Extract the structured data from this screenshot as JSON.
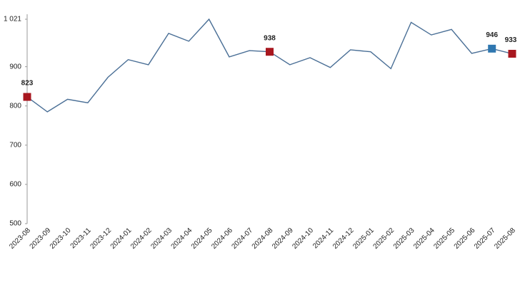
{
  "chart_data": {
    "type": "line",
    "categories": [
      "2023-08",
      "2023-09",
      "2023-10",
      "2023-11",
      "2023-12",
      "2024-01",
      "2024-02",
      "2024-03",
      "2024-04",
      "2024-05",
      "2024-06",
      "2024-07",
      "2024-08",
      "2024-09",
      "2024-10",
      "2024-11",
      "2024-12",
      "2025-01",
      "2025-02",
      "2025-03",
      "2025-04",
      "2025-05",
      "2025-06",
      "2025-07",
      "2025-08"
    ],
    "series": [
      {
        "color": "#4a6f96",
        "values": [
          823,
          785,
          817,
          808,
          873,
          918,
          905,
          985,
          965,
          1021,
          925,
          941,
          938,
          905,
          923,
          898,
          943,
          938,
          895,
          1013,
          981,
          995,
          934,
          946,
          933
        ],
        "marker_colors": [
          "#a8171f",
          null,
          null,
          null,
          null,
          null,
          null,
          null,
          null,
          null,
          null,
          null,
          "#a8171f",
          null,
          null,
          null,
          null,
          null,
          null,
          null,
          null,
          null,
          null,
          "#2f77b0",
          "#a8171f"
        ]
      }
    ],
    "ylim": [
      500,
      1021
    ],
    "yticks": [
      500,
      600,
      700,
      800,
      900,
      {
        "value": 1021,
        "label": "1 021"
      }
    ],
    "grid": false
  }
}
